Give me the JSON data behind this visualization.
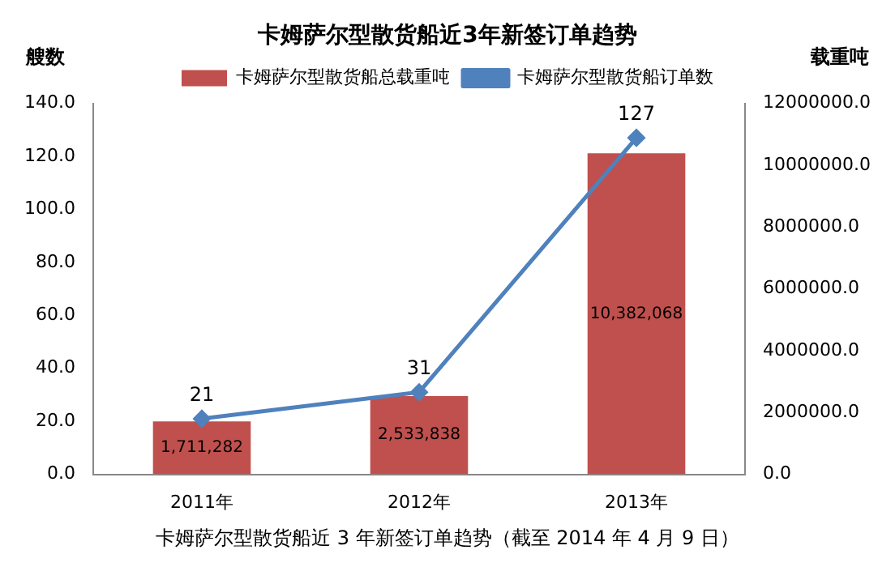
{
  "chart_data": {
    "type": "bar",
    "title": "卡姆萨尔型散货船近3年新签订单趋势",
    "ylabel": "艘数",
    "y2label": "载重吨",
    "categories": [
      "2011年",
      "2012年",
      "2013年"
    ],
    "series": [
      {
        "name": "卡姆萨尔型散货船总载重吨",
        "axis": "y2",
        "color": "#c0504d",
        "values": [
          1711282,
          2533838,
          10382068
        ],
        "value_labels": [
          "1,711,282",
          "2,533,838",
          "10,382,068"
        ]
      },
      {
        "name": "卡姆萨尔型散货船订单数",
        "type": "line",
        "axis": "y",
        "color": "#4f81bd",
        "values": [
          21,
          31,
          127
        ],
        "value_labels": [
          "21",
          "31",
          "127"
        ],
        "marker": "diamond"
      }
    ],
    "ylim": [
      0,
      140
    ],
    "yticks": [
      {
        "value": 0,
        "label": "0.0"
      },
      {
        "value": 20,
        "label": "20.0"
      },
      {
        "value": 40,
        "label": "40.0"
      },
      {
        "value": 60,
        "label": "60.0"
      },
      {
        "value": 80,
        "label": "80.0"
      },
      {
        "value": 100,
        "label": "100.0"
      },
      {
        "value": 120,
        "label": "120.0"
      },
      {
        "value": 140,
        "label": "140.0"
      }
    ],
    "y2lim": [
      0,
      12000000
    ],
    "y2ticks": [
      {
        "value": 0,
        "label": "0.0"
      },
      {
        "value": 2000000,
        "label": "2000000.0"
      },
      {
        "value": 4000000,
        "label": "4000000.0"
      },
      {
        "value": 6000000,
        "label": "6000000.0"
      },
      {
        "value": 8000000,
        "label": "8000000.0"
      },
      {
        "value": 10000000,
        "label": "10000000.0"
      },
      {
        "value": 12000000,
        "label": "12000000.0"
      }
    ],
    "grid": false,
    "legend": "top",
    "annotations": [
      "卡姆萨尔型散货船近 3 年新签订单趋势（截至 2014 年 4 月 9 日）"
    ]
  }
}
